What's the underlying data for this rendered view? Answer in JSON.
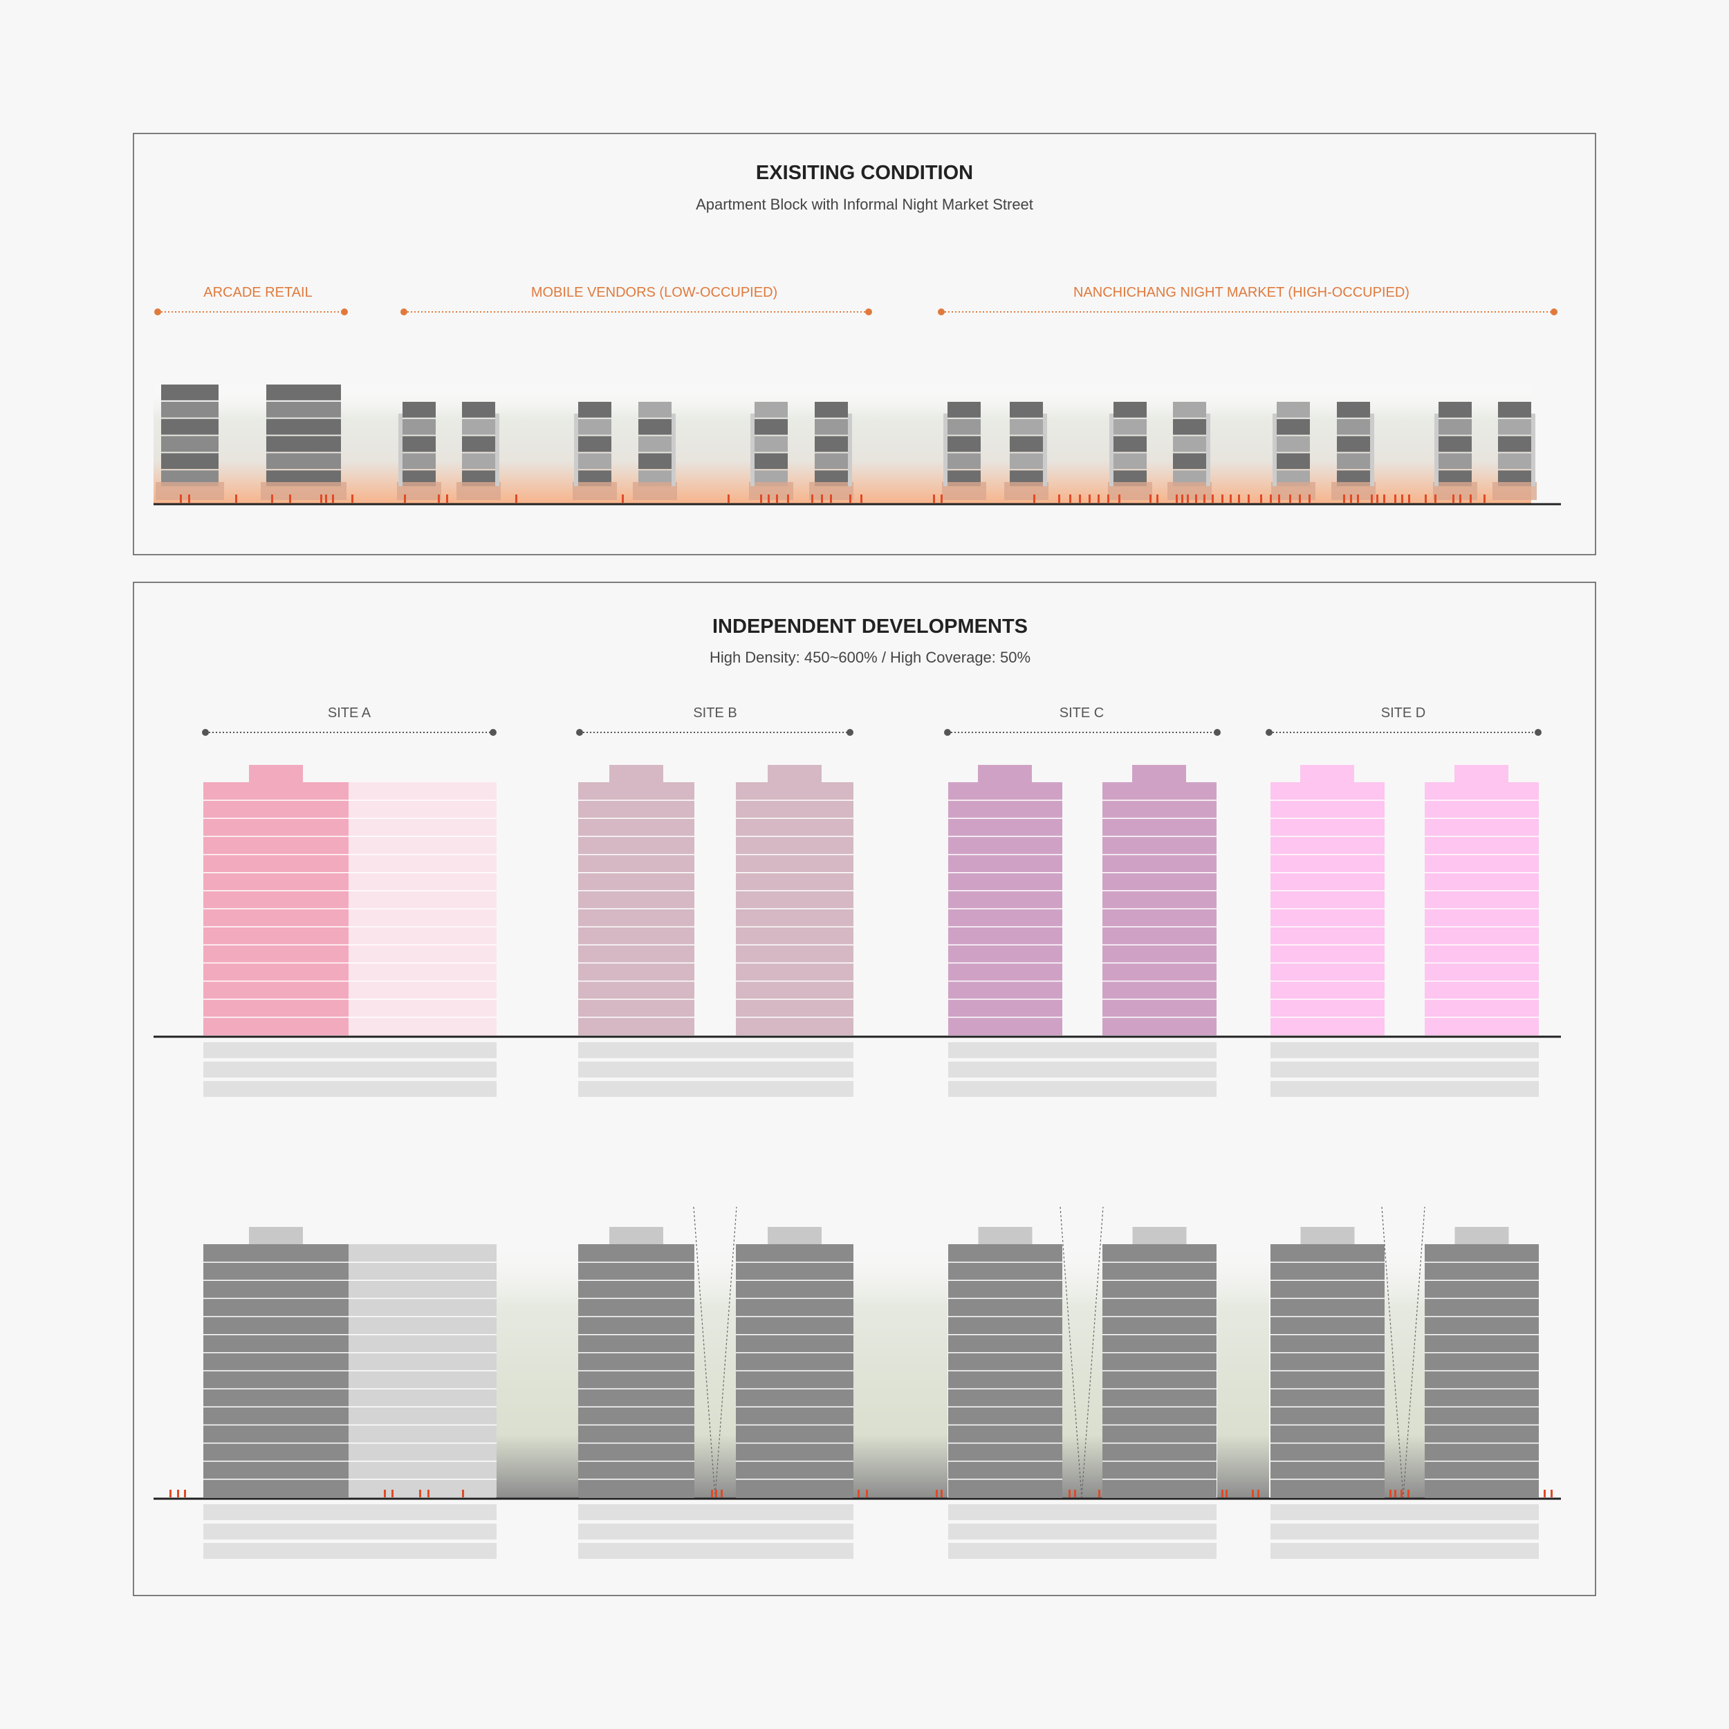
{
  "colors": {
    "background": "#f7f7f7",
    "frame": "#555555",
    "accent_orange": "#e07a3c",
    "vendor_red": "#e04a26",
    "ground": "#222222",
    "gray_dark": "#6e6e6e",
    "gray_mid": "#8a8a8a",
    "gray_light": "#d4d4d4",
    "site_a_primary": "#f2aabe",
    "site_a_secondary": "#fbe5ec",
    "site_b": "#d5b8c3",
    "site_c": "#cfa2c5",
    "site_d": "#fdc5ef",
    "underground": "#e0e0e0",
    "green_void": "#dde3d4"
  },
  "existing": {
    "title": "EXISITING CONDITION",
    "subtitle": "Apartment Block with Informal Night Market Street",
    "zones": [
      {
        "label": "ARCADE RETAIL"
      },
      {
        "label": "MOBILE VENDORS (LOW-OCCUPIED)"
      },
      {
        "label": "NANCHICHANG NIGHT MARKET (HIGH-OCCUPIED)"
      }
    ]
  },
  "independent": {
    "title": "INDEPENDENT DEVELOPMENTS",
    "subtitle": "High Density: 450~600%  /  High Coverage: 50%",
    "sites": [
      {
        "label": "SITE A"
      },
      {
        "label": "SITE B"
      },
      {
        "label": "SITE C"
      },
      {
        "label": "SITE D"
      }
    ]
  }
}
